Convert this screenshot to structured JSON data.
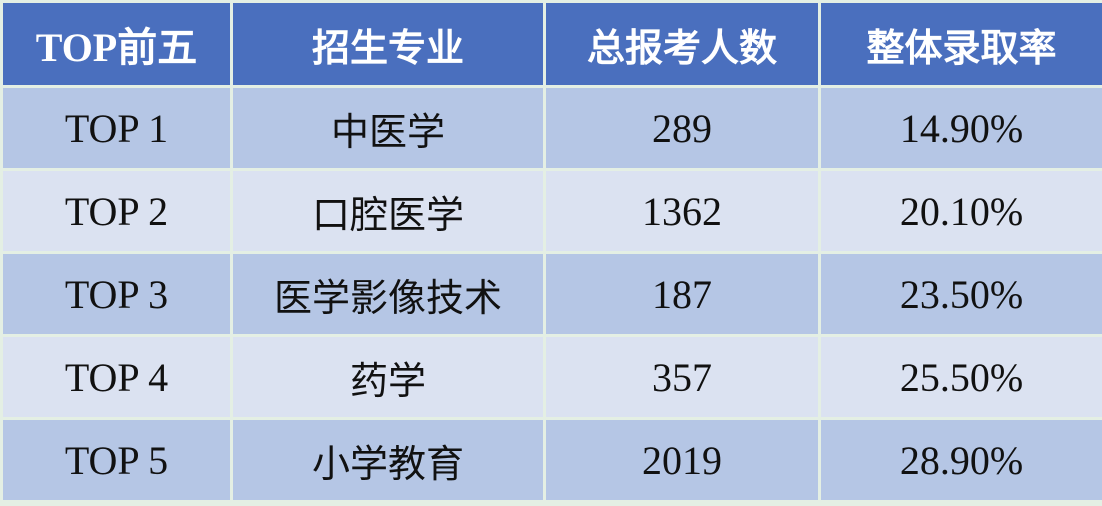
{
  "table": {
    "header": [
      "TOP前五",
      "招生专业",
      "总报考人数",
      "整体录取率"
    ],
    "rows": [
      [
        "TOP 1",
        "中医学",
        "289",
        "14.90%"
      ],
      [
        "TOP 2",
        "口腔医学",
        "1362",
        "20.10%"
      ],
      [
        "TOP 3",
        "医学影像技术",
        "187",
        "23.50%"
      ],
      [
        "TOP 4",
        "药学",
        "357",
        "25.50%"
      ],
      [
        "TOP 5",
        "小学教育",
        "2019",
        "28.90%"
      ]
    ]
  }
}
